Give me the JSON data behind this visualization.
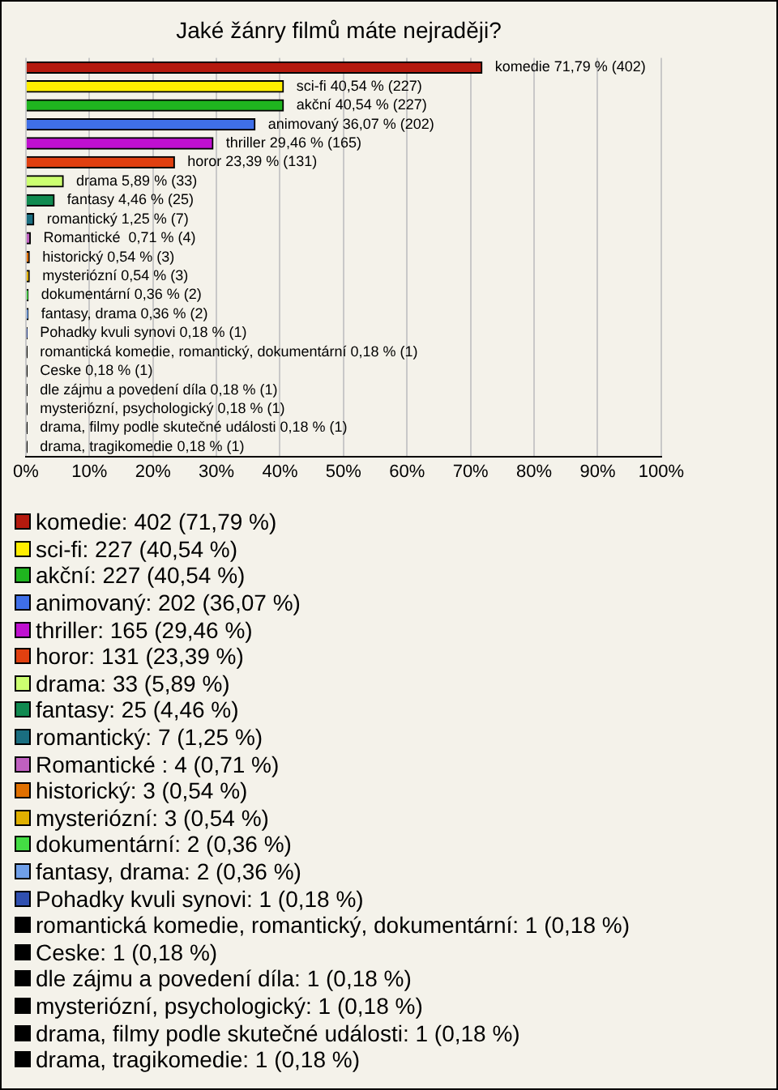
{
  "chart_data": {
    "type": "bar",
    "orientation": "horizontal",
    "title": "Jaké žánry filmů máte nejraději?",
    "categories": [
      "komedie",
      "sci-fi",
      "akční",
      "animovaný",
      "thriller",
      "horor",
      "drama",
      "fantasy",
      "romantický",
      "Romantické ",
      "historický",
      "mysteriózní",
      "dokumentární",
      "fantasy, drama",
      "Pohadky kvuli synovi",
      "romantická komedie, romantický, dokumentární",
      "Ceske",
      "dle zájmu a povedení díla",
      "mysteriózní, psychologický",
      "drama, filmy podle skutečné události",
      "drama, tragikomedie"
    ],
    "values": [
      71.79,
      40.54,
      40.54,
      36.07,
      29.46,
      23.39,
      5.89,
      4.46,
      1.25,
      0.71,
      0.54,
      0.54,
      0.36,
      0.36,
      0.18,
      0.18,
      0.18,
      0.18,
      0.18,
      0.18,
      0.18
    ],
    "value_labels": [
      "71,79 % (402)",
      "40,54 % (227)",
      "40,54 % (227)",
      "36,07 % (202)",
      "29,46 % (165)",
      "23,39 % (131)",
      "5,89 % (33)",
      "4,46 % (25)",
      "1,25 % (7)",
      "0,71 % (4)",
      "0,54 % (3)",
      "0,54 % (3)",
      "0,36 % (2)",
      "0,36 % (2)",
      "0,18 % (1)",
      "0,18 % (1)",
      "0,18 % (1)",
      "0,18 % (1)",
      "0,18 % (1)",
      "0,18 % (1)",
      "0,18 % (1)"
    ],
    "colors": [
      "#b51a0e",
      "#ffee00",
      "#1fb51f",
      "#3f6fe8",
      "#c010d0",
      "#e04010",
      "#ccff70",
      "#108a50",
      "#1a6e80",
      "#c060c0",
      "#e07000",
      "#e0b000",
      "#44dd44",
      "#6f9fe8",
      "#3050b0",
      "#000000",
      "#000000",
      "#000000",
      "#000000",
      "#000000",
      "#000000"
    ],
    "xlim": [
      0,
      100
    ],
    "xticks": [
      {
        "value": 0,
        "label": "0%"
      },
      {
        "value": 10,
        "label": "10%"
      },
      {
        "value": 20,
        "label": "20%"
      },
      {
        "value": 30,
        "label": "30%"
      },
      {
        "value": 40,
        "label": "40%"
      },
      {
        "value": 50,
        "label": "50%"
      },
      {
        "value": 60,
        "label": "60%"
      },
      {
        "value": 70,
        "label": "70%"
      },
      {
        "value": 80,
        "label": "80%"
      },
      {
        "value": 90,
        "label": "90%"
      },
      {
        "value": 100,
        "label": "100%"
      }
    ],
    "grid": "x",
    "tick_labels": "x",
    "annotations": [
      "komedie: 402 (71,79 %)",
      "sci-fi: 227 (40,54 %)",
      "akční: 227 (40,54 %)",
      "animovaný: 202 (36,07 %)",
      "thriller: 165 (29,46 %)",
      "horor: 131 (23,39 %)",
      "drama: 33 (5,89 %)",
      "fantasy: 25 (4,46 %)",
      "romantický: 7 (1,25 %)",
      "Romantické : 4 (0,71 %)",
      "historický: 3 (0,54 %)",
      "mysteriózní: 3 (0,54 %)",
      "dokumentární: 2 (0,36 %)",
      "fantasy, drama: 2 (0,36 %)",
      "Pohadky kvuli synovi: 1 (0,18 %)",
      "romantická komedie, romantický, dokumentární: 1 (0,18 %)",
      "Ceske: 1 (0,18 %)",
      "dle zájmu a povedení díla: 1 (0,18 %)",
      "mysteriózní, psychologický: 1 (0,18 %)",
      "drama, filmy podle skutečné události: 1 (0,18 %)",
      "drama, tragikomedie: 1 (0,18 %)"
    ]
  }
}
